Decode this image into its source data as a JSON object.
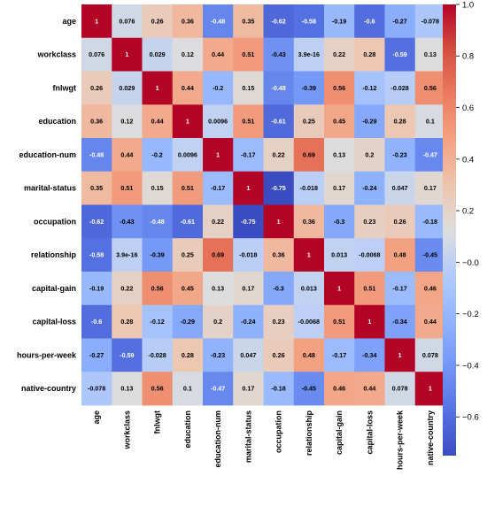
{
  "chart_data": {
    "type": "heatmap",
    "title": "",
    "xlabel": "",
    "ylabel": "",
    "labels": [
      "age",
      "workclass",
      "fnlwgt",
      "education",
      "education-num",
      "marital-status",
      "occupation",
      "relationship",
      "capital-gain",
      "capital-loss",
      "hours-per-week",
      "native-country"
    ],
    "matrix": [
      [
        1,
        0.076,
        0.26,
        0.36,
        -0.48,
        0.35,
        -0.62,
        -0.58,
        -0.19,
        -0.6,
        -0.27,
        -0.078
      ],
      [
        0.076,
        1,
        0.029,
        0.12,
        0.44,
        0.51,
        -0.43,
        3.9e-16,
        0.22,
        0.28,
        -0.59,
        0.13
      ],
      [
        0.26,
        0.029,
        1,
        0.44,
        -0.2,
        0.15,
        -0.48,
        -0.39,
        0.56,
        -0.12,
        -0.028,
        0.56
      ],
      [
        0.36,
        0.12,
        0.44,
        1,
        0.0096,
        0.51,
        -0.61,
        0.25,
        0.45,
        -0.29,
        0.28,
        0.1
      ],
      [
        -0.48,
        0.44,
        -0.2,
        0.0096,
        1,
        -0.17,
        0.22,
        0.69,
        0.13,
        0.2,
        -0.23,
        -0.47
      ],
      [
        0.35,
        0.51,
        0.15,
        0.51,
        -0.17,
        1,
        -0.75,
        -0.018,
        0.17,
        -0.24,
        0.047,
        0.17
      ],
      [
        -0.62,
        -0.43,
        -0.48,
        -0.61,
        0.22,
        -0.75,
        1,
        0.36,
        -0.3,
        0.23,
        0.26,
        -0.18
      ],
      [
        -0.58,
        3.9e-16,
        -0.39,
        0.25,
        0.69,
        -0.018,
        0.36,
        1,
        0.013,
        -0.0068,
        0.48,
        -0.45
      ],
      [
        -0.19,
        0.22,
        0.56,
        0.45,
        0.13,
        0.17,
        -0.3,
        0.013,
        1,
        0.51,
        -0.17,
        0.46
      ],
      [
        -0.6,
        0.28,
        -0.12,
        -0.29,
        0.2,
        -0.24,
        0.23,
        -0.0068,
        0.51,
        1,
        -0.34,
        0.44
      ],
      [
        -0.27,
        -0.59,
        -0.028,
        0.28,
        -0.23,
        0.047,
        0.26,
        0.48,
        -0.17,
        -0.34,
        1,
        0.078
      ],
      [
        -0.078,
        0.13,
        0.56,
        0.1,
        -0.47,
        0.17,
        -0.18,
        -0.45,
        0.46,
        0.44,
        0.078,
        1
      ]
    ],
    "annotations": [
      [
        "1",
        "0.076",
        "0.26",
        "0.36",
        "-0.48",
        "0.35",
        "-0.62",
        "-0.58",
        "-0.19",
        "-0.6",
        "-0.27",
        "-0.078"
      ],
      [
        "0.076",
        "1",
        "0.029",
        "0.12",
        "0.44",
        "0.51",
        "-0.43",
        "3.9e-16",
        "0.22",
        "0.28",
        "-0.59",
        "0.13"
      ],
      [
        "0.26",
        "0.029",
        "1",
        "0.44",
        "-0.2",
        "0.15",
        "-0.48",
        "-0.39",
        "0.56",
        "-0.12",
        "-0.028",
        "0.56"
      ],
      [
        "0.36",
        "0.12",
        "0.44",
        "1",
        "0.0096",
        "0.51",
        "-0.61",
        "0.25",
        "0.45",
        "-0.29",
        "0.28",
        "0.1"
      ],
      [
        "-0.48",
        "0.44",
        "-0.2",
        "0.0096",
        "1",
        "-0.17",
        "0.22",
        "0.69",
        "0.13",
        "0.2",
        "-0.23",
        "-0.47"
      ],
      [
        "0.35",
        "0.51",
        "0.15",
        "0.51",
        "-0.17",
        "1",
        "-0.75",
        "-0.018",
        "0.17",
        "-0.24",
        "0.047",
        "0.17"
      ],
      [
        "-0.62",
        "-0.43",
        "-0.48",
        "-0.61",
        "0.22",
        "-0.75",
        "1",
        "0.36",
        "-0.3",
        "0.23",
        "0.26",
        "-0.18"
      ],
      [
        "-0.58",
        "3.9e-16",
        "-0.39",
        "0.25",
        "0.69",
        "-0.018",
        "0.36",
        "1",
        "0.013",
        "-0.0068",
        "0.48",
        "-0.45"
      ],
      [
        "-0.19",
        "0.22",
        "0.56",
        "0.45",
        "0.13",
        "0.17",
        "-0.3",
        "0.013",
        "1",
        "0.51",
        "-0.17",
        "0.46"
      ],
      [
        "-0.6",
        "0.28",
        "-0.12",
        "-0.29",
        "0.2",
        "-0.24",
        "0.23",
        "-0.0068",
        "0.51",
        "1",
        "-0.34",
        "0.44"
      ],
      [
        "-0.27",
        "-0.59",
        "-0.028",
        "0.28",
        "-0.23",
        "0.047",
        "0.26",
        "0.48",
        "-0.17",
        "-0.34",
        "1",
        "0.078"
      ],
      [
        "-0.078",
        "0.13",
        "0.56",
        "0.1",
        "-0.47",
        "0.17",
        "-0.18",
        "-0.45",
        "0.46",
        "0.44",
        "0.078",
        "1"
      ]
    ],
    "colormap": "coolwarm",
    "vmin": -0.75,
    "vmax": 1.0,
    "colorbar": {
      "ticks": [
        1.0,
        0.8,
        0.6,
        0.4,
        0.2,
        0.0,
        -0.2,
        -0.4,
        -0.6
      ],
      "tick_labels": [
        "1.0",
        "0.8",
        "0.6",
        "0.4",
        "0.2",
        "−0.0",
        "−0.2",
        "−0.4",
        "−0.6"
      ],
      "placement": "right"
    },
    "colors": {
      "cold": "#3b4cc0",
      "neutral": "#dddddd",
      "hot": "#b40426"
    },
    "grid": false
  }
}
